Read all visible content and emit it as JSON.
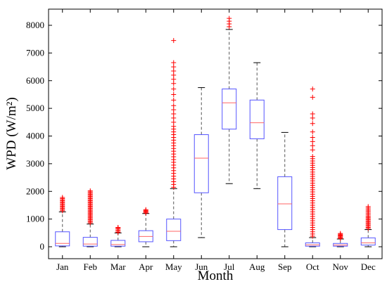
{
  "chart_data": {
    "type": "box",
    "title": "",
    "xlabel": "Month",
    "ylabel": "WPD (W/m²)",
    "ylim": [
      -300,
      8500
    ],
    "yticks": [
      0,
      1000,
      2000,
      3000,
      4000,
      5000,
      6000,
      7000,
      8000
    ],
    "grid": false,
    "legend": "none",
    "colors": {
      "box": "#5555ff",
      "median": "#ff6666",
      "whisker": "#555555",
      "outlier": "#ff0000"
    },
    "categories": [
      "Jan",
      "Feb",
      "Mar",
      "Apr",
      "May",
      "Jun",
      "Jul",
      "Aug",
      "Sep",
      "Oct",
      "Nov",
      "Dec"
    ],
    "boxes": [
      {
        "label": "Jan",
        "min": 0,
        "q1": 30,
        "median": 120,
        "q3": 540,
        "max": 1260,
        "outliers": [
          1300,
          1340,
          1380,
          1420,
          1460,
          1500,
          1540,
          1580,
          1620,
          1660,
          1700,
          1740,
          1780
        ]
      },
      {
        "label": "Feb",
        "min": 0,
        "q1": 20,
        "median": 100,
        "q3": 340,
        "max": 820,
        "outliers": [
          860,
          900,
          940,
          980,
          1020,
          1060,
          1100,
          1140,
          1180,
          1220,
          1260,
          1300,
          1340,
          1380,
          1420,
          1460,
          1500,
          1540,
          1580,
          1620,
          1660,
          1700,
          1740,
          1780,
          1820,
          1860,
          1900,
          1940,
          1980,
          2020
        ]
      },
      {
        "label": "Mar",
        "min": 0,
        "q1": 20,
        "median": 80,
        "q3": 230,
        "max": 500,
        "outliers": [
          520,
          560,
          600,
          640,
          680,
          700
        ]
      },
      {
        "label": "Apr",
        "min": 0,
        "q1": 180,
        "median": 370,
        "q3": 580,
        "max": 1200,
        "outliers": [
          1220,
          1250,
          1280,
          1310,
          1340
        ]
      },
      {
        "label": "May",
        "min": 0,
        "q1": 220,
        "median": 560,
        "q3": 1000,
        "max": 2100,
        "outliers": [
          2150,
          2250,
          2350,
          2450,
          2550,
          2650,
          2750,
          2850,
          2950,
          3050,
          3150,
          3250,
          3350,
          3450,
          3550,
          3650,
          3750,
          3850,
          3950,
          4050,
          4150,
          4250,
          4350,
          4500,
          4650,
          4800,
          4950,
          5100,
          5300,
          5500,
          5700,
          5900,
          6050,
          6200,
          6350,
          6500,
          6650,
          7450
        ]
      },
      {
        "label": "Jun",
        "min": 330,
        "q1": 1950,
        "median": 3200,
        "q3": 4050,
        "max": 5750,
        "outliers": []
      },
      {
        "label": "Jul",
        "min": 2280,
        "q1": 4250,
        "median": 5200,
        "q3": 5700,
        "max": 7850,
        "outliers": [
          7950,
          8050,
          8150,
          8250
        ]
      },
      {
        "label": "Aug",
        "min": 2100,
        "q1": 3900,
        "median": 4480,
        "q3": 5300,
        "max": 6650,
        "outliers": []
      },
      {
        "label": "Sep",
        "min": 0,
        "q1": 620,
        "median": 1550,
        "q3": 2530,
        "max": 4130,
        "outliers": []
      },
      {
        "label": "Oct",
        "min": 0,
        "q1": 20,
        "median": 70,
        "q3": 140,
        "max": 330,
        "outliers": [
          380,
          460,
          540,
          620,
          700,
          780,
          860,
          940,
          1020,
          1100,
          1180,
          1260,
          1340,
          1420,
          1500,
          1580,
          1660,
          1740,
          1820,
          1900,
          1980,
          2060,
          2140,
          2220,
          2300,
          2380,
          2460,
          2540,
          2620,
          2700,
          2780,
          2860,
          2940,
          3020,
          3100,
          3180,
          3260,
          3500,
          3650,
          3800,
          3950,
          4150,
          4450,
          4650,
          4800,
          5400,
          5700
        ]
      },
      {
        "label": "Nov",
        "min": 0,
        "q1": 20,
        "median": 60,
        "q3": 120,
        "max": 280,
        "outliers": [
          300,
          330,
          360,
          390,
          420,
          450,
          480
        ]
      },
      {
        "label": "Dec",
        "min": 0,
        "q1": 60,
        "median": 140,
        "q3": 320,
        "max": 620,
        "outliers": [
          660,
          700,
          740,
          780,
          820,
          860,
          900,
          940,
          980,
          1020,
          1060,
          1100,
          1150,
          1200,
          1250,
          1300,
          1350,
          1400,
          1450
        ]
      }
    ]
  }
}
